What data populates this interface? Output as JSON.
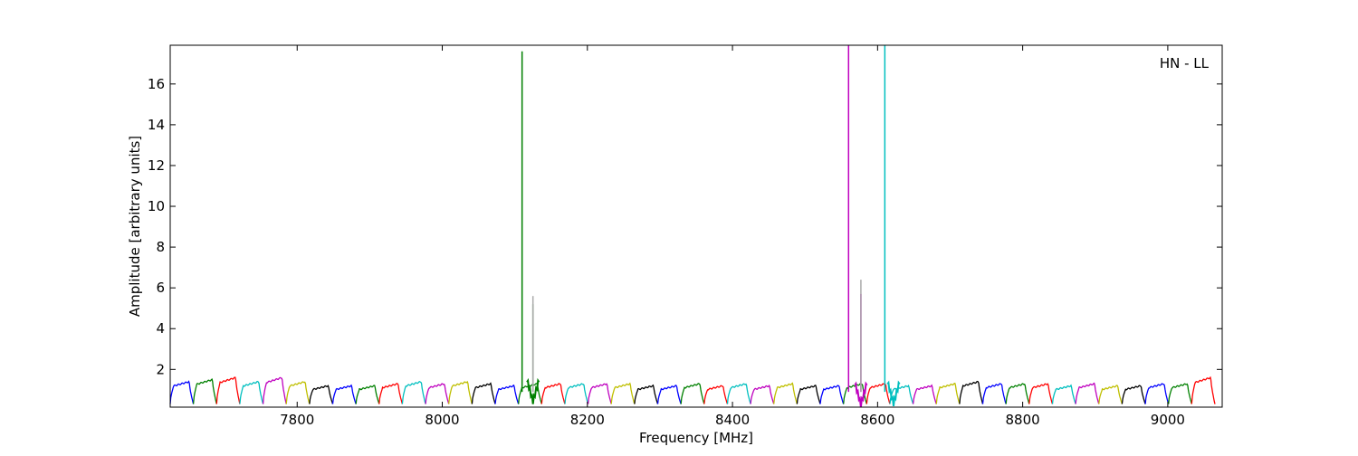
{
  "chart_data": {
    "type": "line",
    "title": "",
    "annotation": "HN - LL",
    "xlabel": "Frequency [MHz]",
    "ylabel": "Amplitude [arbitrary units]",
    "xlim": [
      7625,
      9075
    ],
    "ylim": [
      0.15,
      17.9
    ],
    "xticks": [
      7800,
      8000,
      8200,
      8400,
      8600,
      8800,
      9000
    ],
    "yticks": [
      2,
      4,
      6,
      8,
      10,
      12,
      14,
      16
    ],
    "grid": false,
    "legend": "none",
    "channel_width_mhz": 32,
    "channel_start_mhz": 7625,
    "channel_colors": [
      "#0000ff",
      "#008000",
      "#ff0000",
      "#00bfbf",
      "#bf00bf",
      "#bfbf00",
      "#000000"
    ],
    "channel_peak_amplitudes": [
      1.4,
      1.5,
      1.6,
      1.4,
      1.6,
      1.4,
      1.2,
      1.2,
      1.2,
      1.3,
      1.4,
      1.3,
      1.4,
      1.3,
      1.2,
      1.3,
      1.3,
      1.3,
      1.3,
      1.3,
      1.2,
      1.2,
      1.3,
      1.2,
      1.3,
      1.2,
      1.3,
      1.2,
      1.2,
      1.3,
      1.3,
      1.2,
      1.2,
      1.3,
      1.4,
      1.3,
      1.3,
      1.3,
      1.2,
      1.3,
      1.2,
      1.2,
      1.3,
      1.3,
      1.6
    ],
    "spikes": [
      {
        "x": 8110,
        "y": 17.6,
        "color": "#008000"
      },
      {
        "x": 8125,
        "y": 5.2,
        "color": "#008000"
      },
      {
        "x": 8125,
        "y": 5.6,
        "color": "#aaaaaa"
      },
      {
        "x": 8560,
        "y": 17.9,
        "color": "#bf00bf"
      },
      {
        "x": 8577,
        "y": 5.7,
        "color": "#bf00bf"
      },
      {
        "x": 8577,
        "y": 6.4,
        "color": "#aaaaaa"
      },
      {
        "x": 8610,
        "y": 17.9,
        "color": "#00bfbf"
      }
    ],
    "dips": [
      {
        "x": 8125,
        "y": 0.3,
        "color": "#008000"
      },
      {
        "x": 8577,
        "y": 0.15,
        "color": "#bf00bf"
      },
      {
        "x": 8622,
        "y": 0.2,
        "color": "#00bfbf"
      }
    ]
  }
}
